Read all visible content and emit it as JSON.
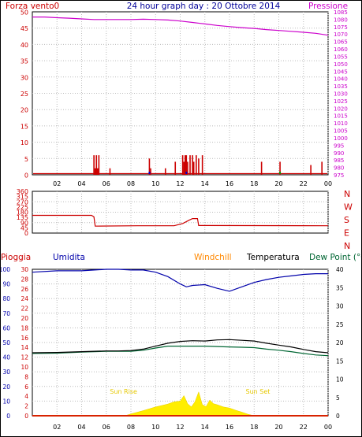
{
  "header": {
    "left_label": "Forza vento0",
    "title": "24 hour graph day : 20 Ottobre 2014",
    "right_label": "Pressione"
  },
  "direction_labels": [
    "N",
    "W",
    "S",
    "E",
    "N"
  ],
  "bottom_labels": {
    "rain": "Pioggia",
    "humidity": "Umidita",
    "windchill": "Windchill",
    "temperature": "Temperatura",
    "dewpoint": "Dew Point (°C"
  },
  "annotations": {
    "sunrise": "Sun Rise",
    "sunset": "Sun Set"
  },
  "colors": {
    "wind": "#cc0000",
    "pressure": "#cc00cc",
    "direction": "#cc0000",
    "humidity": "#0000aa",
    "temperature": "#000000",
    "dewpoint": "#006633",
    "windchill": "#ff8800",
    "rain": "#cc0000",
    "solar": "#ffee00",
    "grid": "#bbbbbb",
    "title": "#000099"
  },
  "chart_data": [
    {
      "id": "wind-pressure",
      "type": "bar",
      "x_ticks": [
        "02",
        "04",
        "06",
        "08",
        "10",
        "12",
        "14",
        "16",
        "18",
        "20",
        "22",
        "00"
      ],
      "ylim": [
        0,
        50
      ],
      "y_ticks": [
        0,
        5,
        10,
        15,
        20,
        25,
        30,
        35,
        40,
        45,
        50
      ],
      "y2lim": [
        975,
        1085
      ],
      "y2_ticks": [
        975,
        980,
        985,
        990,
        995,
        1000,
        1005,
        1010,
        1015,
        1020,
        1025,
        1030,
        1035,
        1040,
        1045,
        1050,
        1055,
        1060,
        1065,
        1070,
        1075,
        1080,
        1085
      ],
      "grid": true,
      "series": [
        {
          "kind": "bar",
          "hours": [
            5.0,
            5.1,
            5.2,
            5.3,
            5.4,
            6.3,
            9.5,
            9.6,
            10.8,
            11.6,
            12.2,
            12.3,
            12.4,
            12.5,
            12.6,
            12.8,
            13.0,
            13.1,
            13.3,
            13.5,
            13.8,
            18.6,
            20.1,
            22.6,
            23.5
          ],
          "values": [
            6,
            2,
            6,
            2,
            6,
            2,
            5,
            2,
            2,
            4,
            6,
            4,
            6,
            6,
            4,
            6,
            6,
            4,
            6,
            5,
            6,
            4,
            4,
            3,
            4
          ]
        },
        {
          "kind": "line",
          "axis": "right",
          "hours": [
            0,
            1,
            2,
            3,
            4,
            5,
            6,
            7,
            8,
            9,
            10,
            11,
            12,
            13,
            14,
            15,
            16,
            17,
            18,
            19,
            20,
            21,
            22,
            23,
            24
          ],
          "values": [
            1081.5,
            1081.5,
            1081,
            1080.7,
            1080.2,
            1079.8,
            1079.8,
            1079.8,
            1079.8,
            1080,
            1079.8,
            1079.5,
            1078.8,
            1077.8,
            1076.8,
            1075.8,
            1075,
            1074.3,
            1073.8,
            1073,
            1072.4,
            1071.8,
            1071.2,
            1070.5,
            1069.2
          ]
        }
      ]
    },
    {
      "id": "wind-direction",
      "type": "line",
      "ylim": [
        0,
        360
      ],
      "y_ticks": [
        0,
        45,
        90,
        135,
        180,
        225,
        270,
        315,
        360
      ],
      "x_ticks": [
        "02",
        "04",
        "06",
        "08",
        "10",
        "12",
        "14",
        "16",
        "18",
        "20",
        "22",
        "00"
      ],
      "grid": true,
      "series": [
        {
          "hours": [
            0,
            4.8,
            5.0,
            5.1,
            8.5,
            11.5,
            12.2,
            12.7,
            13.0,
            13.4,
            13.5,
            14,
            24
          ],
          "values": [
            153,
            153,
            140,
            60,
            63,
            63,
            82,
            110,
            125,
            125,
            65,
            65,
            63
          ]
        }
      ]
    },
    {
      "id": "humidity-temp-rain",
      "type": "line",
      "x_ticks": [
        "02",
        "04",
        "06",
        "08",
        "10",
        "12",
        "14",
        "16",
        "18",
        "20",
        "22",
        "00"
      ],
      "humidity_ticks": [
        0,
        10,
        20,
        30,
        40,
        50,
        60,
        70,
        80,
        90,
        100
      ],
      "humidity_lim": [
        0,
        100
      ],
      "rain_ticks": [
        0,
        2,
        4,
        6,
        8,
        10,
        12,
        14,
        16,
        18,
        20,
        22,
        24,
        26,
        28,
        30
      ],
      "rain_lim": [
        0,
        30
      ],
      "temp_ticks": [
        0,
        5,
        10,
        15,
        20,
        25,
        30,
        35,
        40
      ],
      "temp_lim": [
        0,
        40
      ],
      "grid": true,
      "series": [
        {
          "name": "Umidita",
          "axis": "humidity",
          "hours": [
            0,
            2,
            4,
            6,
            7,
            8,
            9,
            10,
            11,
            12,
            12.5,
            13,
            14,
            15,
            16,
            17,
            18,
            19,
            20,
            21,
            22,
            23,
            24
          ],
          "values": [
            98,
            99,
            99,
            100,
            100,
            99.5,
            99.5,
            98,
            95,
            90,
            88,
            89,
            89.5,
            87,
            85,
            88,
            91,
            93,
            94.5,
            95.5,
            96.5,
            97,
            97
          ]
        },
        {
          "name": "Temperatura",
          "axis": "temp",
          "hours": [
            0,
            2,
            4,
            6,
            7,
            8,
            9,
            10,
            11,
            12,
            13,
            14,
            15,
            16,
            17,
            18,
            19,
            20,
            21,
            22,
            23,
            24
          ],
          "values": [
            17.2,
            17.3,
            17.5,
            17.7,
            17.7,
            17.8,
            18.2,
            19.0,
            19.8,
            20.3,
            20.5,
            20.4,
            20.7,
            20.8,
            20.6,
            20.4,
            19.8,
            19.3,
            18.8,
            18.1,
            17.5,
            17.2
          ]
        },
        {
          "name": "Dew Point",
          "axis": "temp",
          "hours": [
            0,
            2,
            4,
            6,
            7,
            8,
            9,
            10,
            11,
            12,
            13,
            14,
            15,
            16,
            17,
            18,
            19,
            20,
            21,
            22,
            23,
            24
          ],
          "values": [
            17.0,
            17.1,
            17.4,
            17.6,
            17.6,
            17.6,
            17.9,
            18.5,
            19.0,
            19.0,
            19.0,
            19.0,
            18.9,
            18.8,
            18.7,
            18.6,
            18.2,
            17.9,
            17.5,
            17.0,
            16.6,
            16.4
          ]
        },
        {
          "name": "Windchill",
          "axis": "temp",
          "hours": [
            0,
            24
          ],
          "values": [
            0,
            0
          ]
        },
        {
          "name": "Pioggia",
          "axis": "rain",
          "hours": [
            0,
            24
          ],
          "values": [
            0,
            0
          ]
        },
        {
          "name": "Solar",
          "axis": "temp",
          "hours": [
            7.5,
            8,
            9,
            10,
            10.5,
            11,
            11.5,
            12,
            12.3,
            12.6,
            12.9,
            13.2,
            13.5,
            13.8,
            14.1,
            14.4,
            14.7,
            15,
            15.5,
            16,
            16.5,
            17,
            17.5,
            18
          ],
          "values": [
            0,
            0.5,
            1.4,
            2.4,
            2.8,
            3.2,
            3.8,
            4.0,
            5.5,
            3.3,
            2.4,
            3.8,
            6.5,
            3.0,
            2.5,
            4.3,
            3.3,
            3.0,
            2.4,
            2.1,
            1.5,
            1.0,
            0.4,
            0
          ]
        }
      ]
    }
  ]
}
